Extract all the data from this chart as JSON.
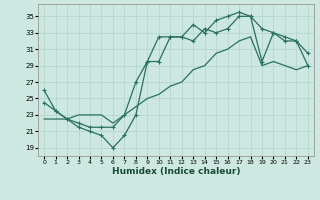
{
  "xlabel": "Humidex (Indice chaleur)",
  "ylabel": "",
  "background_color": "#cce8e0",
  "grid_color": "#b8d8d0",
  "line_color": "#2a7060",
  "xlim": [
    -0.5,
    23.5
  ],
  "ylim": [
    18.0,
    36.5
  ],
  "xticks": [
    0,
    1,
    2,
    3,
    4,
    5,
    6,
    7,
    8,
    9,
    10,
    11,
    12,
    13,
    14,
    15,
    16,
    17,
    18,
    19,
    20,
    21,
    22,
    23
  ],
  "yticks": [
    19,
    21,
    23,
    25,
    27,
    29,
    31,
    33,
    35
  ],
  "line1_x": [
    0,
    1,
    2,
    3,
    4,
    5,
    6,
    7,
    8,
    9,
    10,
    11,
    12,
    13,
    14,
    15,
    16,
    17,
    18,
    19,
    20,
    21,
    22,
    23
  ],
  "line1_y": [
    26.0,
    23.5,
    22.5,
    21.5,
    21.0,
    20.5,
    19.0,
    20.5,
    23.0,
    29.5,
    32.5,
    32.5,
    32.5,
    34.0,
    33.0,
    34.5,
    35.0,
    35.5,
    35.0,
    33.5,
    33.0,
    32.0,
    32.0,
    29.0
  ],
  "line2_x": [
    0,
    1,
    2,
    3,
    4,
    5,
    6,
    7,
    8,
    9,
    10,
    11,
    12,
    13,
    14,
    15,
    16,
    17,
    18,
    19,
    20,
    21,
    22,
    23
  ],
  "line2_y": [
    24.5,
    23.5,
    22.5,
    22.0,
    21.5,
    21.5,
    21.5,
    23.0,
    27.0,
    29.5,
    29.5,
    32.5,
    32.5,
    32.0,
    33.5,
    33.0,
    33.5,
    35.0,
    35.0,
    29.5,
    33.0,
    32.5,
    32.0,
    30.5
  ],
  "line3_x": [
    0,
    1,
    2,
    3,
    4,
    5,
    6,
    7,
    8,
    9,
    10,
    11,
    12,
    13,
    14,
    15,
    16,
    17,
    18,
    19,
    20,
    21,
    22,
    23
  ],
  "line3_y": [
    22.5,
    22.5,
    22.5,
    23.0,
    23.0,
    23.0,
    22.0,
    23.0,
    24.0,
    25.0,
    25.5,
    26.5,
    27.0,
    28.5,
    29.0,
    30.5,
    31.0,
    32.0,
    32.5,
    29.0,
    29.5,
    29.0,
    28.5,
    29.0
  ]
}
